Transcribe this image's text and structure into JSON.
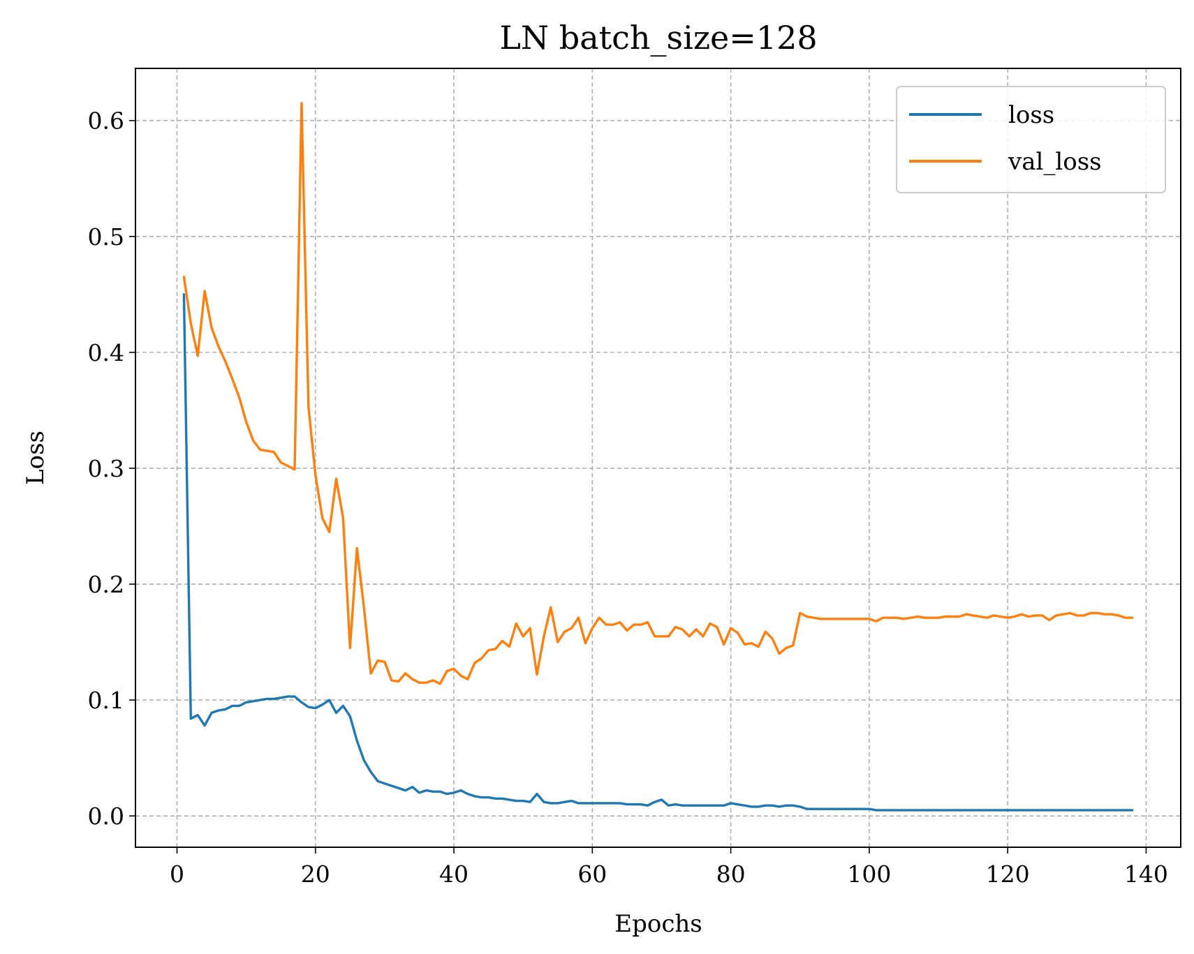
{
  "chart_data": {
    "type": "line",
    "title": "LN batch_size=128",
    "xlabel": "Epochs",
    "ylabel": "Loss",
    "xlim": [
      -6,
      145
    ],
    "ylim": [
      -0.027,
      0.645
    ],
    "xticks": [
      0,
      20,
      40,
      60,
      80,
      100,
      120,
      140
    ],
    "yticks": [
      0.0,
      0.1,
      0.2,
      0.3,
      0.4,
      0.5,
      0.6
    ],
    "ytick_labels": [
      "0.0",
      "0.1",
      "0.2",
      "0.3",
      "0.4",
      "0.5",
      "0.6"
    ],
    "grid": true,
    "legend_position": "upper right",
    "x": [
      1,
      2,
      3,
      4,
      5,
      6,
      7,
      8,
      9,
      10,
      11,
      12,
      13,
      14,
      15,
      16,
      17,
      18,
      19,
      20,
      21,
      22,
      23,
      24,
      25,
      26,
      27,
      28,
      29,
      30,
      31,
      32,
      33,
      34,
      35,
      36,
      37,
      38,
      39,
      40,
      41,
      42,
      43,
      44,
      45,
      46,
      47,
      48,
      49,
      50,
      51,
      52,
      53,
      54,
      55,
      56,
      57,
      58,
      59,
      60,
      61,
      62,
      63,
      64,
      65,
      66,
      67,
      68,
      69,
      70,
      71,
      72,
      73,
      74,
      75,
      76,
      77,
      78,
      79,
      80,
      81,
      82,
      83,
      84,
      85,
      86,
      87,
      88,
      89,
      90,
      91,
      92,
      93,
      94,
      95,
      96,
      97,
      98,
      99,
      100,
      101,
      102,
      103,
      104,
      105,
      106,
      107,
      108,
      109,
      110,
      111,
      112,
      113,
      114,
      115,
      116,
      117,
      118,
      119,
      120,
      121,
      122,
      123,
      124,
      125,
      126,
      127,
      128,
      129,
      130,
      131,
      132,
      133,
      134,
      135,
      136,
      137,
      138
    ],
    "series": [
      {
        "name": "loss",
        "color": "#1f77b4",
        "values": [
          0.45,
          0.084,
          0.087,
          0.078,
          0.089,
          0.091,
          0.092,
          0.095,
          0.095,
          0.098,
          0.099,
          0.1,
          0.101,
          0.101,
          0.102,
          0.103,
          0.103,
          0.098,
          0.094,
          0.093,
          0.096,
          0.1,
          0.089,
          0.095,
          0.086,
          0.065,
          0.048,
          0.038,
          0.03,
          0.028,
          0.026,
          0.024,
          0.022,
          0.025,
          0.02,
          0.022,
          0.021,
          0.021,
          0.019,
          0.02,
          0.022,
          0.019,
          0.017,
          0.016,
          0.016,
          0.015,
          0.015,
          0.014,
          0.013,
          0.013,
          0.012,
          0.019,
          0.012,
          0.011,
          0.011,
          0.012,
          0.013,
          0.011,
          0.011,
          0.011,
          0.011,
          0.011,
          0.011,
          0.011,
          0.01,
          0.01,
          0.01,
          0.009,
          0.012,
          0.014,
          0.009,
          0.01,
          0.009,
          0.009,
          0.009,
          0.009,
          0.009,
          0.009,
          0.009,
          0.011,
          0.01,
          0.009,
          0.008,
          0.008,
          0.009,
          0.009,
          0.008,
          0.009,
          0.009,
          0.008,
          0.006,
          0.006,
          0.006,
          0.006,
          0.006,
          0.006,
          0.006,
          0.006,
          0.006,
          0.006,
          0.005,
          0.005,
          0.005,
          0.005,
          0.005,
          0.005,
          0.005,
          0.005,
          0.005,
          0.005,
          0.005,
          0.005,
          0.005,
          0.005,
          0.005,
          0.005,
          0.005,
          0.005,
          0.005,
          0.005,
          0.005,
          0.005,
          0.005,
          0.005,
          0.005,
          0.005,
          0.005,
          0.005,
          0.005,
          0.005,
          0.005,
          0.005,
          0.005,
          0.005,
          0.005,
          0.005,
          0.005,
          0.005
        ]
      },
      {
        "name": "val_loss",
        "color": "#ff7f0e",
        "values": [
          0.465,
          0.425,
          0.397,
          0.453,
          0.421,
          0.405,
          0.392,
          0.377,
          0.361,
          0.34,
          0.324,
          0.316,
          0.315,
          0.314,
          0.305,
          0.302,
          0.299,
          0.615,
          0.353,
          0.294,
          0.257,
          0.245,
          0.291,
          0.257,
          0.145,
          0.231,
          0.18,
          0.123,
          0.134,
          0.133,
          0.117,
          0.116,
          0.123,
          0.118,
          0.115,
          0.115,
          0.117,
          0.114,
          0.125,
          0.127,
          0.121,
          0.118,
          0.132,
          0.136,
          0.143,
          0.144,
          0.151,
          0.146,
          0.166,
          0.155,
          0.162,
          0.122,
          0.155,
          0.18,
          0.15,
          0.159,
          0.162,
          0.171,
          0.149,
          0.162,
          0.171,
          0.165,
          0.165,
          0.167,
          0.16,
          0.165,
          0.165,
          0.167,
          0.155,
          0.155,
          0.155,
          0.163,
          0.161,
          0.155,
          0.161,
          0.155,
          0.166,
          0.163,
          0.148,
          0.162,
          0.158,
          0.148,
          0.149,
          0.146,
          0.159,
          0.153,
          0.14,
          0.145,
          0.147,
          0.175,
          0.172,
          0.171,
          0.17,
          0.17,
          0.17,
          0.17,
          0.17,
          0.17,
          0.17,
          0.17,
          0.168,
          0.171,
          0.171,
          0.171,
          0.17,
          0.171,
          0.172,
          0.171,
          0.171,
          0.171,
          0.172,
          0.172,
          0.172,
          0.174,
          0.173,
          0.172,
          0.171,
          0.173,
          0.172,
          0.171,
          0.172,
          0.174,
          0.172,
          0.173,
          0.173,
          0.169,
          0.173,
          0.174,
          0.175,
          0.173,
          0.173,
          0.175,
          0.175,
          0.174,
          0.174,
          0.173,
          0.171,
          0.171
        ]
      }
    ]
  }
}
